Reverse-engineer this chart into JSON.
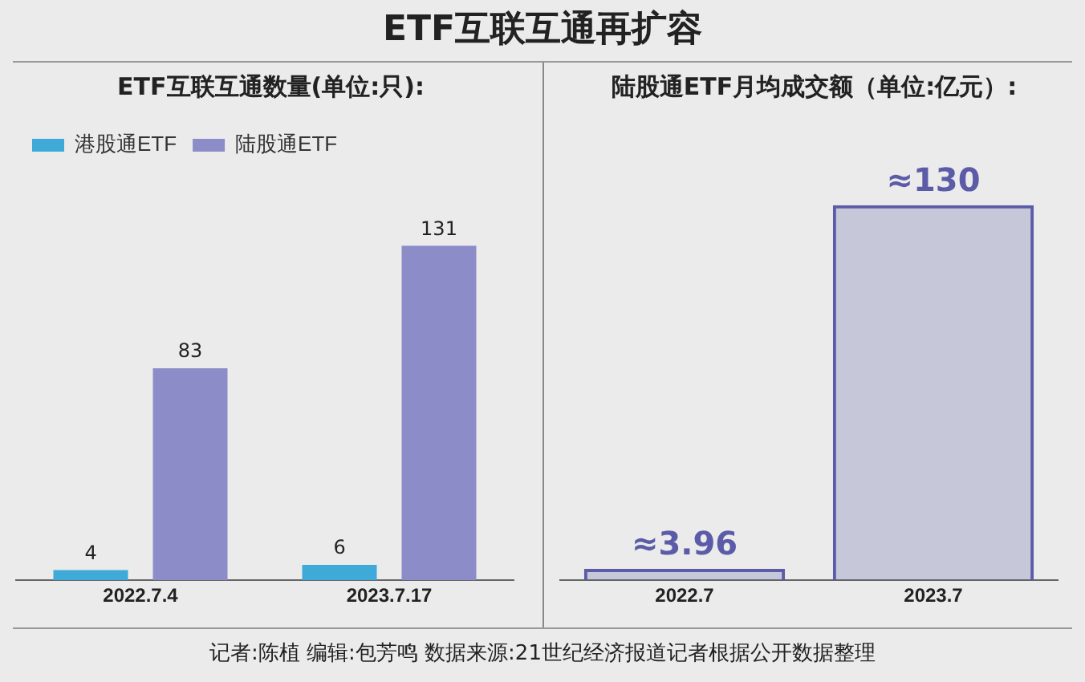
{
  "chart_data": [
    {
      "type": "bar",
      "title": "ETF互联互通数量(单位:只):",
      "annotations": [
        "ETF互联互通再扩容"
      ],
      "categories": [
        "2022.7.4",
        "2023.7.17"
      ],
      "series": [
        {
          "name": "港股通ETF",
          "color": "#3fa9d8",
          "values": [
            4,
            6
          ]
        },
        {
          "name": "陆股通ETF",
          "color": "#8c8cc8",
          "values": [
            83,
            131
          ]
        }
      ],
      "data_labels": true,
      "legend": "top left",
      "grid": false
    },
    {
      "type": "bar",
      "title": "陆股通ETF月均成交额（单位:亿元）:",
      "annotations": [
        "记者:陈植  编辑:包芳鸣  数据来源:21世纪经济报道记者根据公开数据整理"
      ],
      "categories": [
        "2022.7",
        "2023.7"
      ],
      "values": [
        3.96,
        130
      ],
      "color": "#5b5ba8",
      "value_labels": [
        "≈3.96",
        "≈130"
      ],
      "grid": false
    }
  ]
}
